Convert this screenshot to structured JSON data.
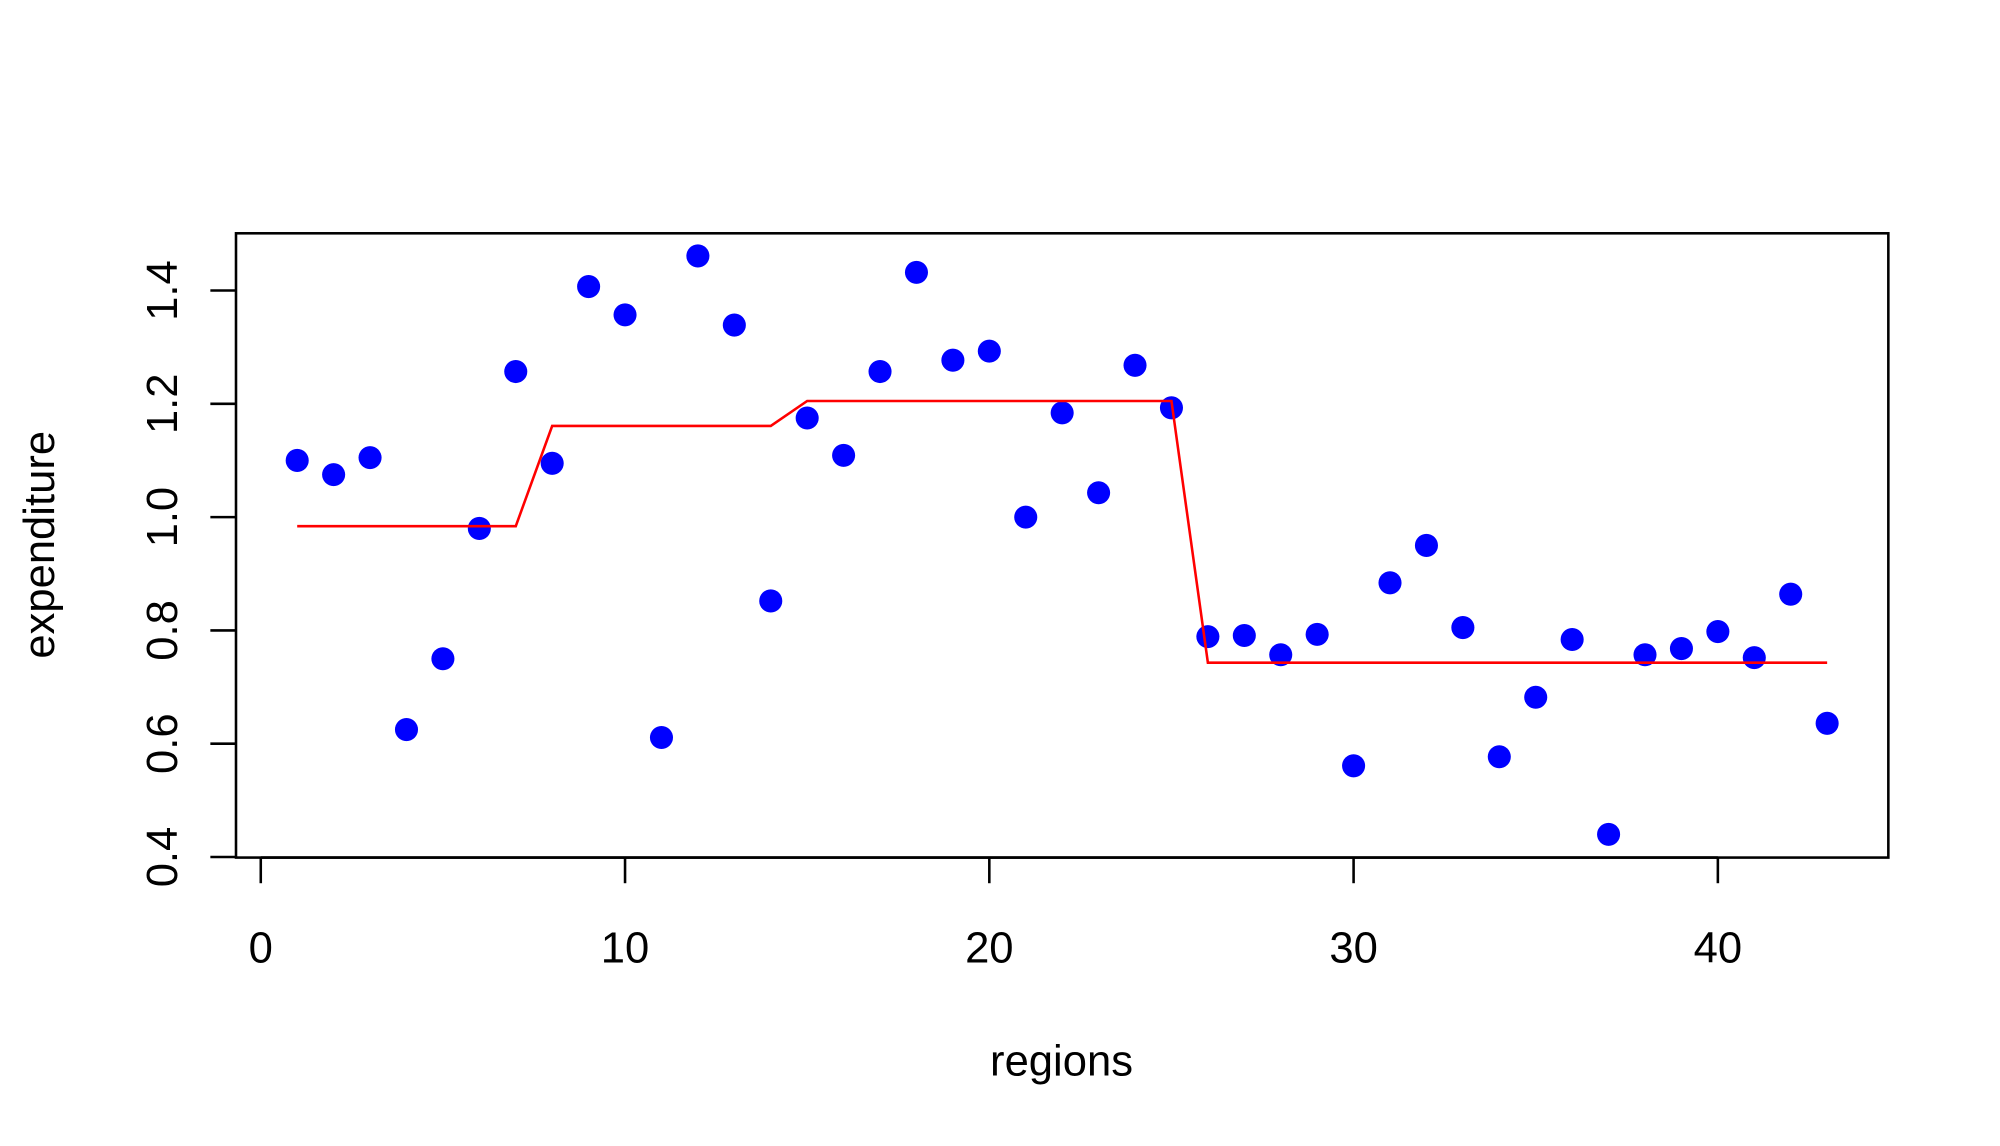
{
  "chart_data": {
    "type": "scatter",
    "xlabel": "regions",
    "ylabel": "expenditure",
    "x": [
      1,
      2,
      3,
      4,
      5,
      6,
      7,
      8,
      9,
      10,
      11,
      12,
      13,
      14,
      15,
      16,
      17,
      18,
      19,
      20,
      21,
      22,
      23,
      24,
      25,
      26,
      27,
      28,
      29,
      30,
      31,
      32,
      33,
      34,
      35,
      36,
      37,
      38,
      39,
      40,
      41,
      42,
      43
    ],
    "series": [
      {
        "style": "points",
        "color": "#0000ff",
        "values": [
          1.1,
          1.075,
          1.105,
          0.625,
          0.75,
          0.98,
          1.257,
          1.095,
          1.407,
          1.357,
          0.611,
          1.461,
          1.339,
          0.852,
          1.175,
          1.109,
          1.257,
          1.432,
          1.277,
          1.293,
          1.0,
          1.184,
          1.043,
          1.268,
          1.193,
          0.789,
          0.791,
          0.757,
          0.793,
          0.561,
          0.884,
          0.95,
          0.805,
          0.577,
          0.682,
          0.784,
          0.44,
          0.757,
          0.768,
          0.798,
          0.752,
          0.864,
          0.636
        ]
      },
      {
        "style": "line",
        "color": "#ff0000",
        "values": [
          0.984,
          0.984,
          0.984,
          0.984,
          0.984,
          0.984,
          0.984,
          1.161,
          1.161,
          1.161,
          1.161,
          1.161,
          1.161,
          1.161,
          1.205,
          1.205,
          1.205,
          1.205,
          1.205,
          1.205,
          1.205,
          1.205,
          1.205,
          1.205,
          1.205,
          0.743,
          0.743,
          0.743,
          0.743,
          0.743,
          0.743,
          0.743,
          0.743,
          0.743,
          0.743,
          0.743,
          0.743,
          0.743,
          0.743,
          0.743,
          0.743,
          0.743,
          0.743
        ]
      }
    ],
    "xlim": [
      -0.68,
      44.68
    ],
    "xticks": [
      0,
      10,
      20,
      30,
      40
    ],
    "ylim": [
      0.399,
      1.501
    ],
    "yticks": [
      0.4,
      0.6,
      0.8,
      {
        "value": 1,
        "label": "1.0"
      },
      1.2,
      1.4
    ]
  }
}
